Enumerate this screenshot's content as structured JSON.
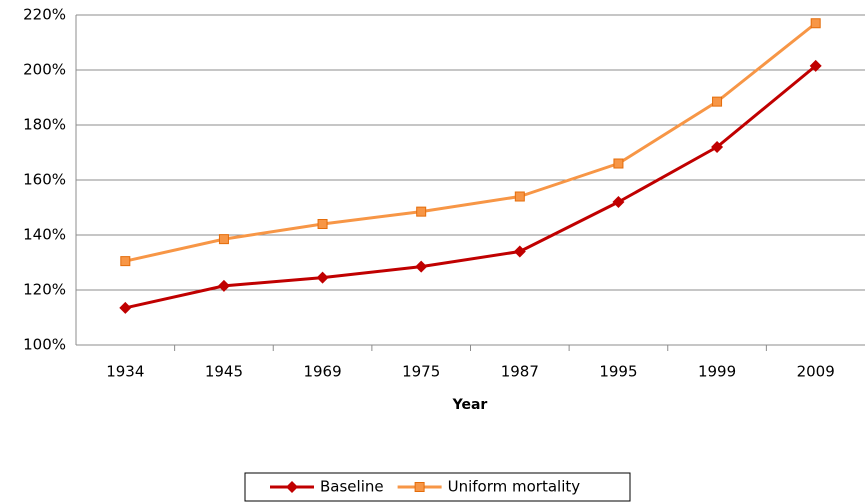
{
  "chart_data": {
    "type": "line",
    "x_label": "Year",
    "categories": [
      "1934",
      "1945",
      "1969",
      "1975",
      "1987",
      "1995",
      "1999",
      "2009"
    ],
    "series": [
      {
        "name": "Baseline",
        "color": "#c00000",
        "marker": "diamond",
        "values": [
          113.5,
          121.5,
          124.5,
          128.5,
          134,
          152,
          172,
          201.5
        ]
      },
      {
        "name": "Uniform mortality",
        "color": "#f79646",
        "marker": "square",
        "values": [
          130.5,
          138.5,
          144,
          148.5,
          154,
          166,
          188.5,
          217
        ]
      }
    ],
    "ylim": [
      100,
      220
    ],
    "yticks": [
      {
        "value": 100,
        "label": "100%"
      },
      {
        "value": 120,
        "label": "120%"
      },
      {
        "value": 140,
        "label": "140%"
      },
      {
        "value": 160,
        "label": "160%"
      },
      {
        "value": 180,
        "label": "180%"
      },
      {
        "value": 200,
        "label": "200%"
      },
      {
        "value": 220,
        "label": "220%"
      }
    ],
    "grid": true,
    "legend": "bottom"
  }
}
